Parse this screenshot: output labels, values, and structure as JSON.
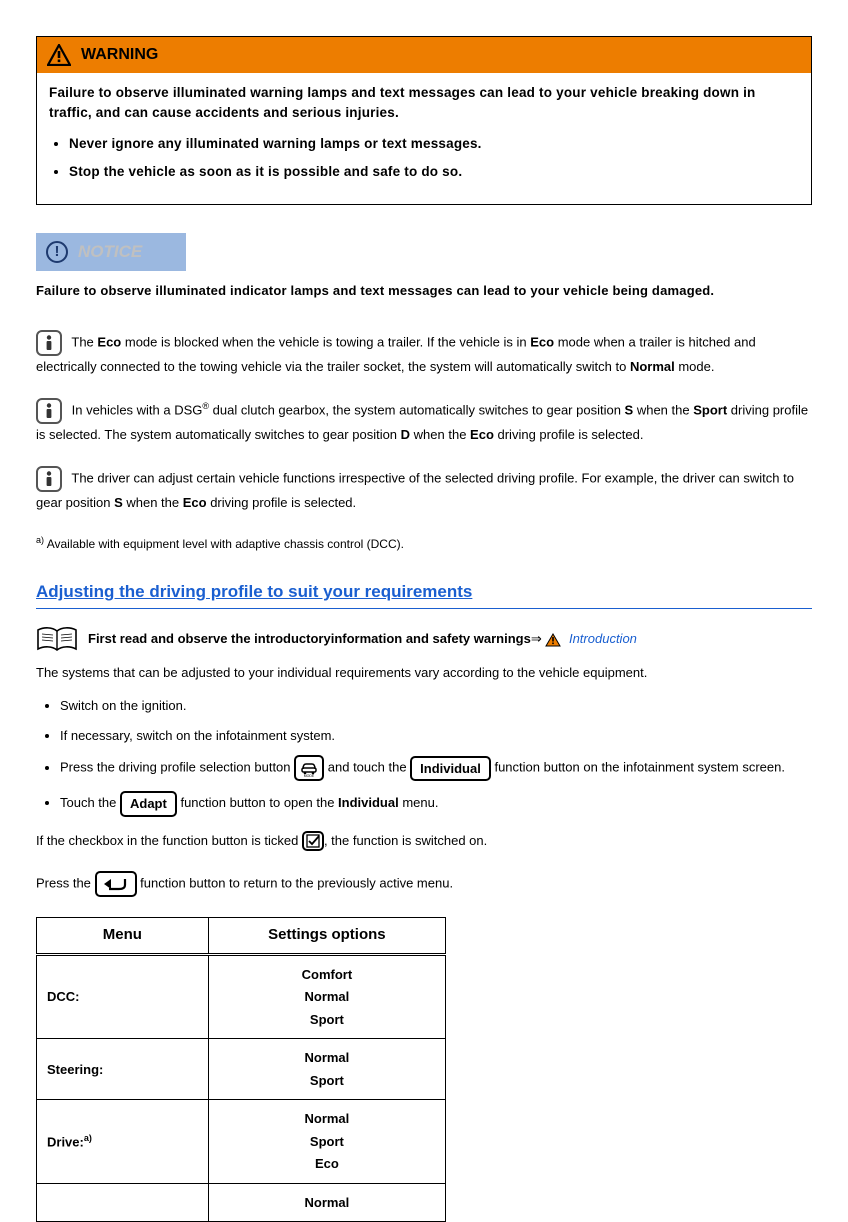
{
  "warning": {
    "title": "WARNING",
    "intro": "Failure to observe illuminated warning lamps and text messages can lead to your vehicle breaking down in traffic, and can cause accidents and serious injuries.",
    "bullets": [
      "Never ignore any illuminated warning lamps or text messages.",
      "Stop the vehicle as soon as it is possible and safe to do so."
    ],
    "header_bg": "#ed7d00"
  },
  "notice": {
    "label": "NOTICE",
    "text": "Failure to observe illuminated indicator lamps and text messages can lead to your vehicle being damaged.",
    "header_bg": "#9bb8e0",
    "label_color": "#c0c0c0"
  },
  "info_notes": {
    "n1_pre": "The ",
    "n1_b1": "Eco",
    "n1_mid": " mode is blocked when the vehicle is towing a trailer. If the vehicle is in ",
    "n1_b2": "Eco",
    "n1_mid2": " mode when a trailer is hitched and electrically connected to the towing vehicle via the trailer socket, the system will automatically switch to ",
    "n1_b3": "Normal",
    "n1_end": " mode.",
    "n2_pre": "In vehicles with a DSG",
    "n2_sup": "®",
    "n2_mid": " dual clutch gearbox, the system automatically switches to gear position ",
    "n2_b1": "S",
    "n2_mid2": " when the ",
    "n2_b2": "Sport",
    "n2_mid3": " driving profile is selected. The system automatically switches to gear position ",
    "n2_b3": "D",
    "n2_mid4": " when the ",
    "n2_b4": "Eco",
    "n2_end": " driving profile is selected.",
    "n3_pre": "The driver can adjust certain vehicle functions irrespective of the selected driving profile. For example, the driver can switch to gear position ",
    "n3_b1": "S",
    "n3_mid": " when the ",
    "n3_b2": "Eco",
    "n3_end": " driving profile is selected."
  },
  "footnote": {
    "sup": "a)",
    "text": " Available with equipment level with adaptive chassis control (DCC)."
  },
  "section": {
    "title": "Adjusting the driving profile to suit your requirements",
    "book_text": "First read and observe the introductoryinformation and safety warnings",
    "arrow": "⇒",
    "intro_link": "Introduction",
    "desc": "The systems that can be adjusted to your individual requirements vary according to the vehicle equipment."
  },
  "steps": {
    "s1": "Switch on the ignition.",
    "s2": "If necessary, switch on the infotainment system.",
    "s3_pre": "Press the driving profile selection button ",
    "s3_mid": " and touch the ",
    "s3_btn": "Individual",
    "s3_end": " function button on the infotainment system screen.",
    "s4_pre": "Touch the ",
    "s4_btn": "Adapt",
    "s4_mid": " function button to open the ",
    "s4_b": "Individual",
    "s4_end": " menu."
  },
  "checkbox_line": {
    "pre": "If the checkbox in the function button is ticked ",
    "post": ", the function is switched on."
  },
  "back_line": {
    "pre": "Press the ",
    "post": " function button to return to the previously active menu."
  },
  "table": {
    "h1": "Menu",
    "h2": "Settings options",
    "rows": [
      {
        "menu": "DCC:",
        "menu_sup": "",
        "opts": [
          "Comfort",
          "Normal",
          "Sport"
        ]
      },
      {
        "menu": "Steering:",
        "menu_sup": "",
        "opts": [
          "Normal",
          "Sport"
        ]
      },
      {
        "menu": "Drive:",
        "menu_sup": "a)",
        "opts": [
          "Normal",
          "Sport",
          "Eco"
        ]
      },
      {
        "menu": "",
        "menu_sup": "",
        "opts": [
          "Normal"
        ]
      }
    ]
  },
  "mode_icon_label": "MODE"
}
